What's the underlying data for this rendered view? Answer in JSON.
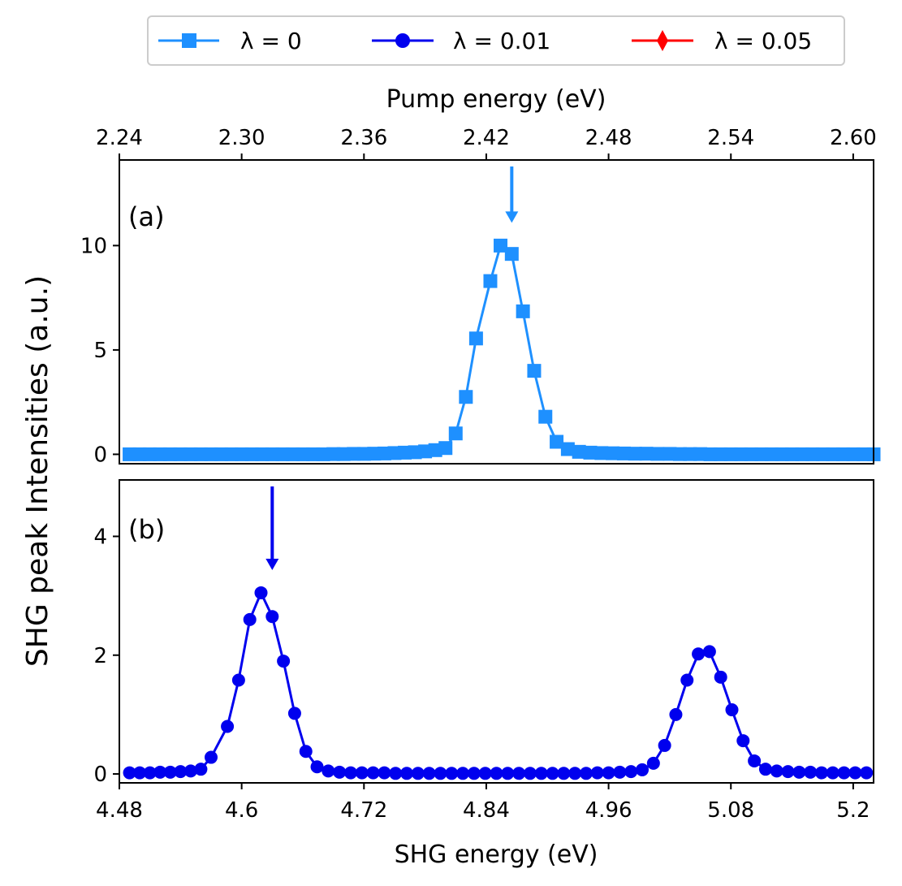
{
  "colors": {
    "lambda0": "#1E90FF",
    "lambda001": "#0000EE",
    "lambda005": "#FF0000",
    "axis": "#000000",
    "legend_border": "#CCCCCC"
  },
  "legend": {
    "items": [
      {
        "label": "λ = 0",
        "marker": "square",
        "color_key": "lambda0"
      },
      {
        "label": "λ = 0.01",
        "marker": "circle",
        "color_key": "lambda001"
      },
      {
        "label": "λ = 0.05",
        "marker": "diamond",
        "color_key": "lambda005"
      }
    ]
  },
  "axes": {
    "ylabel": "SHG peak Intensities (a.u.)",
    "xlabel_bottom": "SHG energy (eV)",
    "xlabel_top": "Pump energy (eV)",
    "xlim": [
      4.48,
      5.22
    ],
    "bottom_ticks": [
      "4.48",
      "4.6",
      "4.72",
      "4.84",
      "4.96",
      "5.08",
      "5.2"
    ],
    "bottom_tick_values": [
      4.48,
      4.6,
      4.72,
      4.84,
      4.96,
      5.08,
      5.2
    ],
    "top_ticks": [
      "2.24",
      "2.30",
      "2.36",
      "2.42",
      "2.48",
      "2.54",
      "2.60"
    ],
    "top_tick_values": [
      2.24,
      2.3,
      2.36,
      2.42,
      2.48,
      2.54,
      2.6
    ]
  },
  "chart_data": [
    {
      "type": "line",
      "panel_label": "(a)",
      "ylim": [
        -0.45,
        14.1
      ],
      "yticks": [
        0,
        5,
        10
      ],
      "ytick_labels": [
        "0",
        "5",
        "10"
      ],
      "arrow_x": 4.865,
      "series": [
        {
          "name": "λ = 0",
          "color_key": "lambda0",
          "marker": "square",
          "x": [
            4.49,
            4.5,
            4.51,
            4.52,
            4.53,
            4.54,
            4.55,
            4.56,
            4.57,
            4.58,
            4.59,
            4.6,
            4.61,
            4.62,
            4.63,
            4.64,
            4.65,
            4.66,
            4.67,
            4.68,
            4.69,
            4.7,
            4.71,
            4.72,
            4.73,
            4.74,
            4.75,
            4.76,
            4.77,
            4.78,
            4.79,
            4.8,
            4.81,
            4.82,
            4.83,
            4.844,
            4.854,
            4.865,
            4.876,
            4.887,
            4.898,
            4.909,
            4.92,
            4.931,
            4.942,
            4.953,
            4.964,
            4.975,
            4.986,
            4.997,
            5.008,
            5.02,
            5.03,
            5.04,
            5.05,
            5.06,
            5.07,
            5.08,
            5.09,
            5.1,
            5.11,
            5.12,
            5.13,
            5.14,
            5.15,
            5.16,
            5.17,
            5.18,
            5.19,
            5.2,
            5.21,
            5.22
          ],
          "y": [
            0,
            0,
            0,
            0,
            0,
            0,
            0,
            0,
            0,
            0,
            0,
            0,
            0,
            0,
            0,
            0,
            0,
            0,
            0,
            0,
            0.01,
            0.01,
            0.02,
            0.02,
            0.03,
            0.04,
            0.06,
            0.08,
            0.1,
            0.14,
            0.2,
            0.3,
            1.0,
            2.75,
            5.55,
            8.3,
            10.0,
            9.6,
            6.85,
            4.0,
            1.8,
            0.6,
            0.25,
            0.12,
            0.08,
            0.06,
            0.05,
            0.04,
            0.03,
            0.03,
            0.02,
            0.02,
            0.01,
            0.01,
            0.01,
            0,
            0,
            0,
            0,
            0,
            0,
            0,
            0,
            0,
            0,
            0,
            0,
            0,
            0,
            0,
            0,
            0
          ]
        }
      ]
    },
    {
      "type": "line",
      "panel_label": "(b)",
      "ylim": [
        -0.15,
        4.95
      ],
      "yticks": [
        0,
        2,
        4
      ],
      "ytick_labels": [
        "0",
        "2",
        "4"
      ],
      "arrow_x": 4.63,
      "series": [
        {
          "name": "λ = 0.01",
          "color_key": "lambda001",
          "marker": "circle",
          "x": [
            4.49,
            4.5,
            4.51,
            4.52,
            4.53,
            4.54,
            4.55,
            4.56,
            4.57,
            4.586,
            4.597,
            4.608,
            4.619,
            4.63,
            4.641,
            4.652,
            4.663,
            4.674,
            4.685,
            4.696,
            4.707,
            4.718,
            4.729,
            4.74,
            4.751,
            4.762,
            4.773,
            4.784,
            4.795,
            4.806,
            4.817,
            4.828,
            4.839,
            4.85,
            4.861,
            4.872,
            4.883,
            4.894,
            4.905,
            4.916,
            4.927,
            4.938,
            4.949,
            4.96,
            4.971,
            4.982,
            4.993,
            5.004,
            5.015,
            5.026,
            5.037,
            5.048,
            5.059,
            5.07,
            5.081,
            5.092,
            5.103,
            5.114,
            5.125,
            5.136,
            5.147,
            5.158,
            5.169,
            5.18,
            5.191,
            5.202,
            5.213
          ],
          "y": [
            0.02,
            0.02,
            0.02,
            0.03,
            0.03,
            0.04,
            0.05,
            0.08,
            0.28,
            0.8,
            1.58,
            2.6,
            3.05,
            2.65,
            1.9,
            1.02,
            0.38,
            0.12,
            0.05,
            0.03,
            0.02,
            0.02,
            0.02,
            0.02,
            0.01,
            0.01,
            0.01,
            0.01,
            0.01,
            0.01,
            0.01,
            0.01,
            0.01,
            0.01,
            0.01,
            0.01,
            0.01,
            0.01,
            0.01,
            0.01,
            0.01,
            0.01,
            0.02,
            0.02,
            0.03,
            0.04,
            0.07,
            0.18,
            0.48,
            1.0,
            1.58,
            2.02,
            2.06,
            1.63,
            1.08,
            0.56,
            0.22,
            0.08,
            0.05,
            0.04,
            0.03,
            0.03,
            0.02,
            0.02,
            0.02,
            0.02,
            0.02
          ]
        }
      ]
    }
  ]
}
